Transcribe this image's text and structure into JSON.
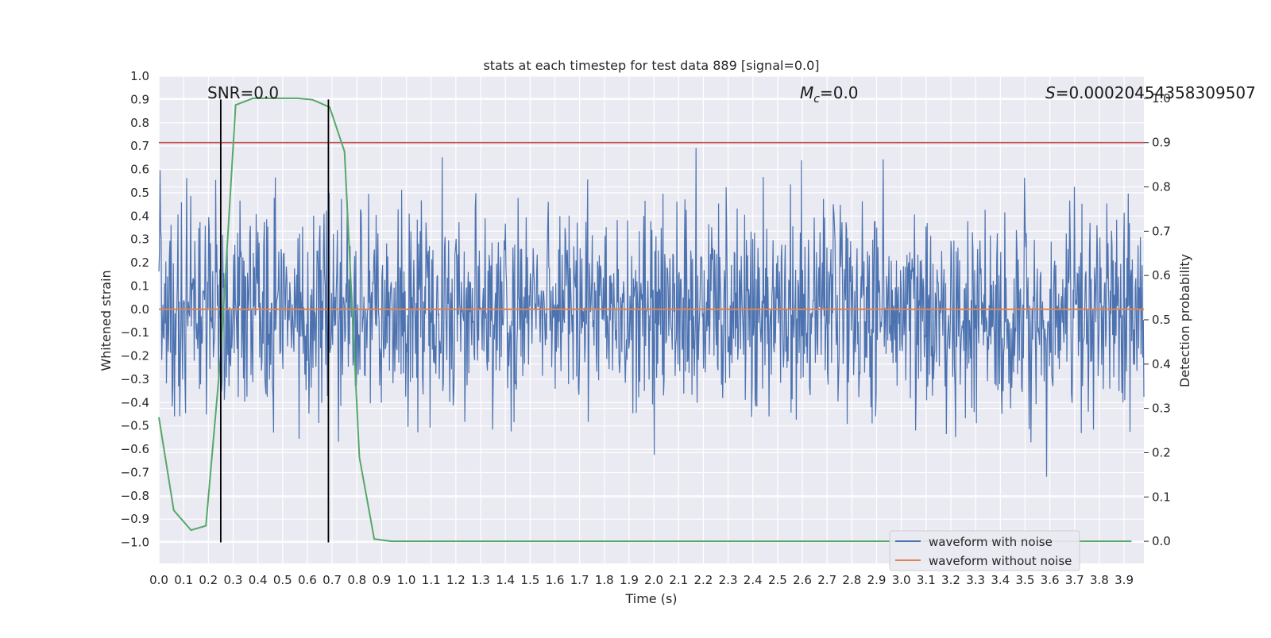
{
  "chart_data": {
    "type": "line",
    "title": "stats at each timestep for test data 889 [signal=0.0]",
    "xlabel": "Time (s)",
    "ylabel": "Whitened strain",
    "y2label": "Detection probability",
    "xlim": [
      0.0,
      3.98
    ],
    "ylim": [
      -1.09,
      1.0
    ],
    "y2lim": [
      -0.05,
      1.05
    ],
    "x_ticks": [
      "0.0",
      "0.1",
      "0.2",
      "0.3",
      "0.4",
      "0.5",
      "0.6",
      "0.7",
      "0.8",
      "0.9",
      "1.0",
      "1.1",
      "1.2",
      "1.3",
      "1.4",
      "1.5",
      "1.6",
      "1.7",
      "1.8",
      "1.9",
      "2.0",
      "2.1",
      "2.2",
      "2.3",
      "2.4",
      "2.5",
      "2.6",
      "2.7",
      "2.8",
      "2.9",
      "3.0",
      "3.1",
      "3.2",
      "3.3",
      "3.4",
      "3.5",
      "3.6",
      "3.7",
      "3.8",
      "3.9"
    ],
    "y_ticks": [
      "1.0",
      "0.9",
      "0.8",
      "0.7",
      "0.6",
      "0.5",
      "0.4",
      "0.3",
      "0.2",
      "0.1",
      "0.0",
      "−0.1",
      "−0.2",
      "−0.3",
      "−0.4",
      "−0.5",
      "−0.6",
      "−0.7",
      "−0.8",
      "−0.9",
      "−1.0"
    ],
    "y2_ticks": [
      "1.0",
      "0.9",
      "0.8",
      "0.7",
      "0.6",
      "0.5",
      "0.4",
      "0.3",
      "0.2",
      "0.1",
      "0.0"
    ],
    "grid": true,
    "legend_position": "bottom-right",
    "legend": [
      "waveform with noise",
      "waveform without noise"
    ],
    "annotations": {
      "snr": "SNR=0.0",
      "mc_symbol": "M",
      "mc_sub": "c",
      "mc_value": "=0.0",
      "s_symbol": "S",
      "s_value": "=0.00020454358309507"
    },
    "series": [
      {
        "name": "waveform with noise",
        "color": "#4c72b0",
        "kind": "noise",
        "approx_amplitude_range": [
          -1.0,
          0.9
        ],
        "typical_abs_amplitude": 0.3,
        "x_range": [
          0.0,
          3.98
        ]
      },
      {
        "name": "waveform without noise",
        "color": "#dd8452",
        "x": [
          0.0,
          3.98
        ],
        "y": [
          0.0,
          0.0
        ]
      },
      {
        "color": "#55a868",
        "axis": "y2",
        "x": [
          0.0,
          0.06,
          0.13,
          0.19,
          0.25,
          0.31,
          0.38,
          0.44,
          0.5,
          0.56,
          0.62,
          0.69,
          0.75,
          0.81,
          0.87,
          0.94,
          1.0,
          1.5,
          2.0,
          2.5,
          3.0,
          3.5,
          3.93
        ],
        "y": [
          0.28,
          0.07,
          0.025,
          0.035,
          0.42,
          0.985,
          1.0,
          1.0,
          1.0,
          1.0,
          0.997,
          0.98,
          0.88,
          0.19,
          0.005,
          0.0,
          0.0,
          0.0,
          0.0,
          0.0,
          0.0,
          0.0,
          0.0
        ]
      }
    ],
    "hlines": [
      {
        "axis": "y2",
        "y": 0.9,
        "color": "#c44e52"
      }
    ],
    "vlines": [
      {
        "x": 0.25,
        "y_range": [
          -1.0,
          0.9
        ],
        "color": "#000000"
      },
      {
        "x": 0.685,
        "y_range": [
          -1.0,
          0.9
        ],
        "color": "#000000"
      }
    ]
  }
}
